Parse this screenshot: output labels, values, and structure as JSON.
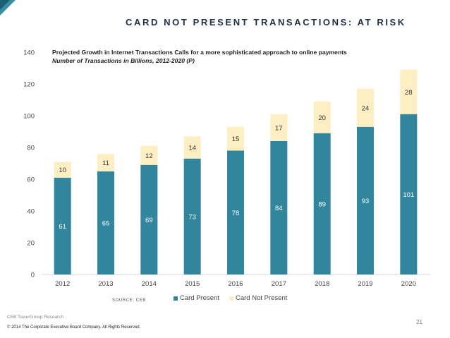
{
  "header": {
    "title": "CARD NOT PRESENT TRANSACTIONS: AT RISK"
  },
  "chart_data": {
    "type": "bar",
    "stacked": true,
    "title": "Projected Growth in Internet Transactions Calls for a more sophisticated approach to online payments",
    "subtitle": "Number of Transactions in Billions, 2012-2020 (P)",
    "categories": [
      "2012",
      "2013",
      "2014",
      "2015",
      "2016",
      "2017",
      "2018",
      "2019",
      "2020"
    ],
    "series": [
      {
        "name": "Card Present",
        "color": "#31859c",
        "values": [
          61,
          65,
          69,
          73,
          78,
          84,
          89,
          93,
          101
        ]
      },
      {
        "name": "Card Not Present",
        "color": "#fdeec3",
        "values": [
          10,
          11,
          12,
          14,
          15,
          17,
          20,
          24,
          28
        ]
      }
    ],
    "yticks": [
      "0",
      "20",
      "40",
      "60",
      "80",
      "100",
      "120",
      "140"
    ],
    "ylim": [
      0,
      140
    ],
    "legend_position": "bottom",
    "source": "SOURCE: CEB"
  },
  "footer": {
    "research": "CEB TowerGroup Research",
    "copyright": "© 2014 The Corporate Executive Board Company. All Rights Reserved.",
    "page_number": "21"
  }
}
